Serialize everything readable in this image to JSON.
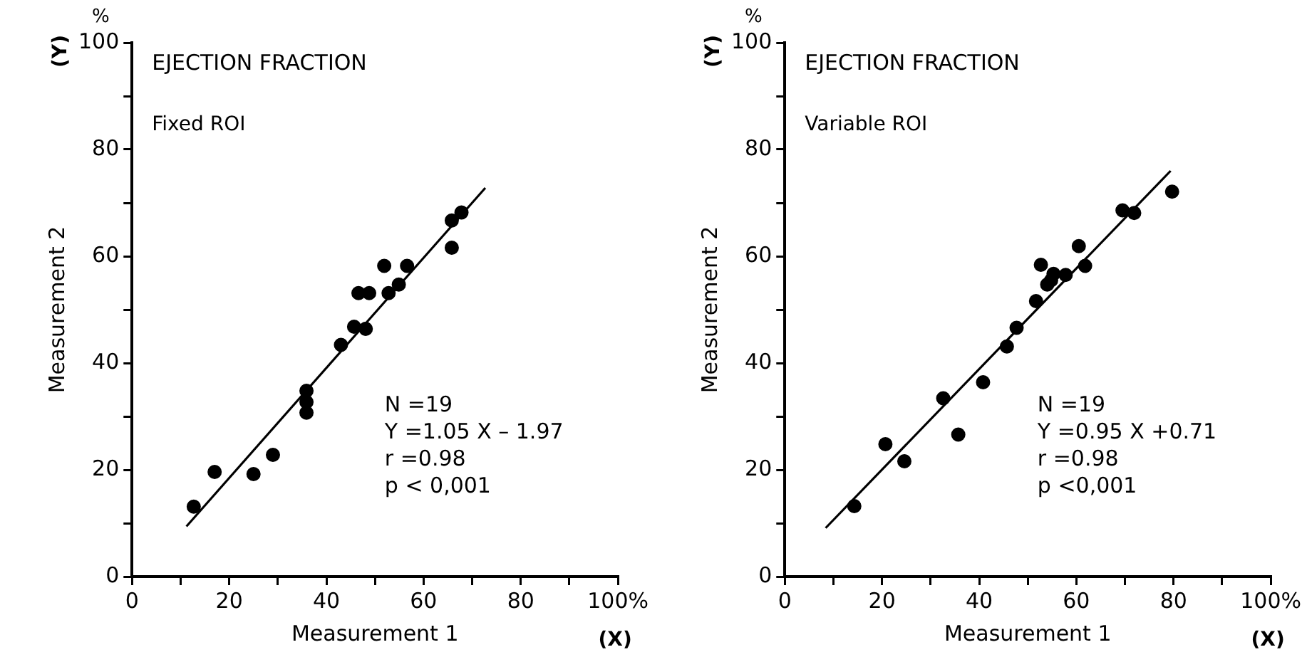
{
  "chart_data": [
    {
      "type": "scatter",
      "title": "EJECTION FRACTION",
      "subtitle": "Fixed ROI",
      "xlabel": "Measurement 1",
      "ylabel": "Measurement 2",
      "annotations": [
        "%",
        "(Y)",
        "(X)",
        "N =19",
        "Y =1.05 X – 1.97",
        "r =0.98",
        "p < 0,001"
      ],
      "series": [
        {
          "marker": "circle",
          "color": "#000000",
          "x": [
            12.7,
            17.0,
            25.0,
            29.0,
            35.9,
            35.9,
            35.9,
            43.0,
            45.7,
            48.1,
            46.6,
            48.8,
            51.9,
            52.8,
            54.9,
            56.6,
            65.8,
            65.8,
            67.8
          ],
          "values": [
            13.1,
            19.6,
            19.2,
            22.8,
            34.8,
            32.7,
            30.7,
            43.4,
            46.8,
            46.4,
            53.1,
            53.1,
            58.2,
            53.1,
            54.7,
            58.2,
            66.7,
            61.6,
            68.2
          ]
        },
        {
          "type": "line",
          "marker": "none",
          "color": "#000000",
          "x": [
            11.2,
            72.7
          ],
          "values": [
            9.4,
            72.8
          ]
        }
      ],
      "xlim": [
        0,
        100
      ],
      "ylim": [
        0,
        100
      ],
      "xticks": [
        0,
        {
          "value": 10,
          "label": null
        },
        20,
        {
          "value": 30,
          "label": null
        },
        40,
        {
          "value": 50,
          "label": null
        },
        60,
        {
          "value": 70,
          "label": null
        },
        80,
        {
          "value": 90,
          "label": null
        },
        {
          "value": 100,
          "label": "100%"
        }
      ],
      "yticks": [
        0,
        {
          "value": 10,
          "label": null
        },
        20,
        {
          "value": 30,
          "label": null
        },
        40,
        {
          "value": 50,
          "label": null
        },
        60,
        {
          "value": 70,
          "label": null
        },
        80,
        {
          "value": 90,
          "label": null
        },
        100
      ],
      "grid": false,
      "legend": false
    },
    {
      "type": "scatter",
      "title": "EJECTION FRACTION",
      "subtitle": "Variable ROI",
      "xlabel": "Measurement 1",
      "ylabel": "Measurement 2",
      "annotations": [
        "%",
        "(Y)",
        "(X)",
        "N =19",
        "Y =0.95 X +0.71",
        "r =0.98",
        "p <0,001"
      ],
      "series": [
        {
          "marker": "circle",
          "color": "#000000",
          "x": [
            14.3,
            20.7,
            24.6,
            32.6,
            35.7,
            40.8,
            45.7,
            47.7,
            51.7,
            52.7,
            54.0,
            54.8,
            55.3,
            57.8,
            60.5,
            61.8,
            69.5,
            71.9,
            79.7
          ],
          "values": [
            13.2,
            24.8,
            21.6,
            33.4,
            26.6,
            36.4,
            43.1,
            46.6,
            51.6,
            58.4,
            54.7,
            55.5,
            56.7,
            56.5,
            61.9,
            58.2,
            68.6,
            68.1,
            72.1
          ]
        },
        {
          "type": "line",
          "marker": "none",
          "color": "#000000",
          "x": [
            8.4,
            79.4
          ],
          "values": [
            9.1,
            76.0
          ]
        }
      ],
      "xlim": [
        0,
        100
      ],
      "ylim": [
        0,
        100
      ],
      "xticks": [
        0,
        {
          "value": 10,
          "label": null
        },
        20,
        {
          "value": 30,
          "label": null
        },
        40,
        {
          "value": 50,
          "label": null
        },
        60,
        {
          "value": 70,
          "label": null
        },
        80,
        {
          "value": 90,
          "label": null
        },
        {
          "value": 100,
          "label": "100%"
        }
      ],
      "yticks": [
        0,
        {
          "value": 10,
          "label": null
        },
        20,
        {
          "value": 30,
          "label": null
        },
        40,
        {
          "value": 50,
          "label": null
        },
        60,
        {
          "value": 70,
          "label": null
        },
        80,
        {
          "value": 90,
          "label": null
        },
        100
      ],
      "grid": false,
      "legend": false
    }
  ]
}
